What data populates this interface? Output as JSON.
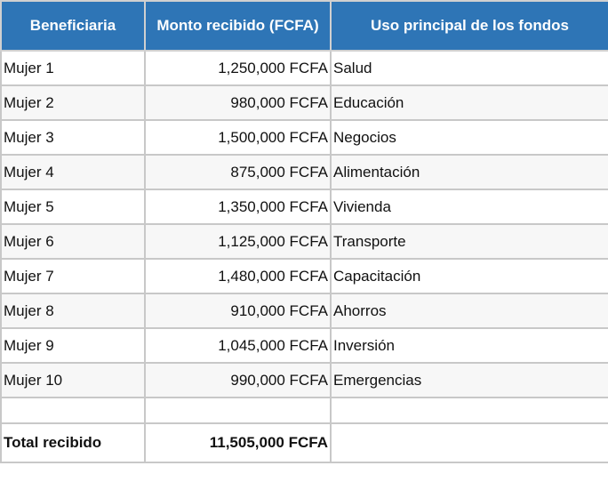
{
  "table": {
    "headers": [
      "Beneficiaria",
      "Monto recibido (FCFA)",
      "Uso principal de los fondos"
    ],
    "rows": [
      [
        "Mujer 1",
        "1,250,000 FCFA",
        "Salud"
      ],
      [
        "Mujer 2",
        "980,000 FCFA",
        "Educación"
      ],
      [
        "Mujer 3",
        "1,500,000 FCFA",
        "Negocios"
      ],
      [
        "Mujer 4",
        "875,000 FCFA",
        "Alimentación"
      ],
      [
        "Mujer 5",
        "1,350,000 FCFA",
        "Vivienda"
      ],
      [
        "Mujer 6",
        "1,125,000 FCFA",
        "Transporte"
      ],
      [
        "Mujer 7",
        "1,480,000 FCFA",
        "Capacitación"
      ],
      [
        "Mujer 8",
        "910,000 FCFA",
        "Ahorros"
      ],
      [
        "Mujer 9",
        "1,045,000 FCFA",
        "Inversión"
      ],
      [
        "Mujer 10",
        "990,000 FCFA",
        "Emergencias"
      ]
    ],
    "total": {
      "label": "Total recibido",
      "value": "11,505,000 FCFA"
    }
  },
  "colors": {
    "header_bg": "#2E75B6",
    "alt_row": "#f7f7f7",
    "grid": "#c8c8c8"
  }
}
